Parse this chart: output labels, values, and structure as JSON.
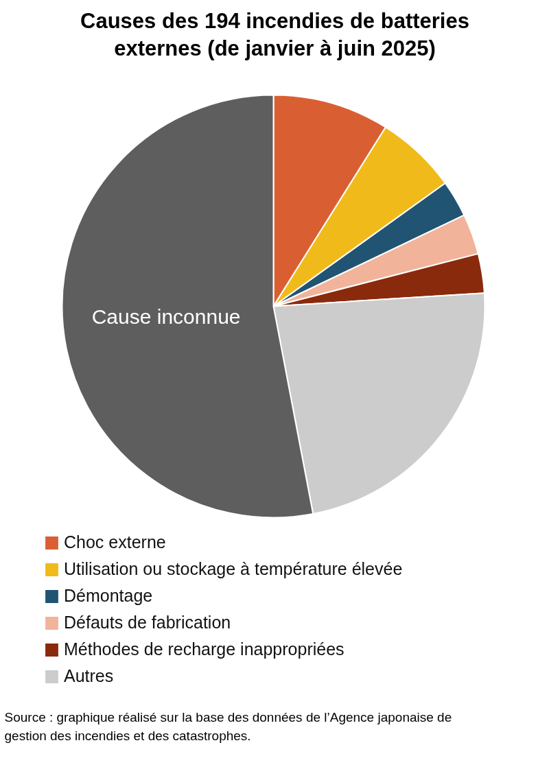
{
  "chart_data": {
    "type": "pie",
    "title": "Causes des 194 incendies de batteries externes (de janvier à juin 2025)",
    "categories": [
      "Choc externe",
      "Utilisation ou stockage à température élevée",
      "Démontage",
      "Défauts de fabrication",
      "Méthodes de recharge inappropriées",
      "Autres",
      "Cause inconnue"
    ],
    "values": [
      8.9,
      6.2,
      2.8,
      3.1,
      3.0,
      23.0,
      53.0
    ],
    "colors": [
      "#d95f33",
      "#f0bb1a",
      "#215472",
      "#f2b39b",
      "#8a2a0c",
      "#cccccc",
      "#5e5e5e"
    ],
    "legend": "bottom",
    "annotations": [
      "Source : graphique réalisé sur la base des données de l’Agence japonaise de gestion des incendies et des catastrophes."
    ]
  }
}
